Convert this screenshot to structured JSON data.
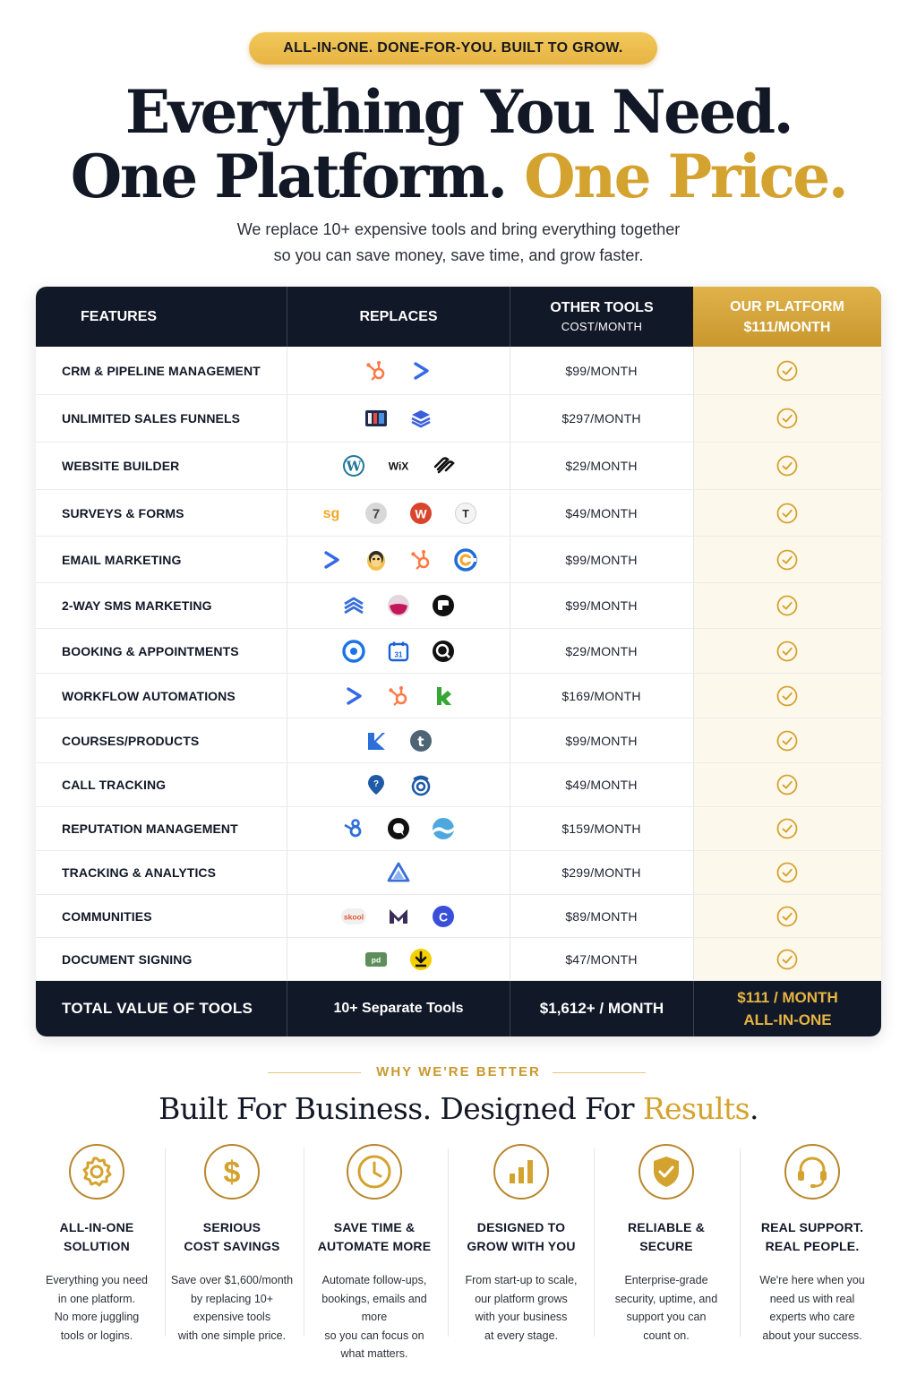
{
  "badge": "ALL-IN-ONE. DONE-FOR-YOU. BUILT TO GROW.",
  "headline": {
    "line1": "Everything You Need.",
    "line2_dark": "One Platform.",
    "line2_gold": "One Price."
  },
  "subheadline": {
    "line1": "We replace 10+ expensive tools and bring everything together",
    "line2": "so you can save money, save time, and grow faster."
  },
  "table": {
    "headers": {
      "features": "FEATURES",
      "replaces": "REPLACES",
      "other_line1": "OTHER TOOLS",
      "other_line2": "COST/MONTH",
      "ours_line1": "OUR PLATFORM",
      "ours_line2": "$111/MONTH"
    },
    "rows": [
      {
        "feature": "CRM & PIPELINE MANAGEMENT",
        "cost": "$99/MONTH",
        "logos": [
          "hubspot-logo",
          "activecampaign-logo"
        ]
      },
      {
        "feature": "UNLIMITED SALES FUNNELS",
        "cost": "$297/MONTH",
        "logos": [
          "clickfunnels-logo",
          "stack-logo"
        ]
      },
      {
        "feature": "WEBSITE BUILDER",
        "cost": "$29/MONTH",
        "logos": [
          "wordpress-logo",
          "wix-logo",
          "squarespace-logo"
        ]
      },
      {
        "feature": "SURVEYS & FORMS",
        "cost": "$49/MONTH",
        "logos": [
          "surveygizmo-logo",
          "seven-logo",
          "wufoo-logo",
          "typeform-logo"
        ]
      },
      {
        "feature": "EMAIL MARKETING",
        "cost": "$99/MONTH",
        "logos": [
          "activecampaign-logo",
          "mailchimp-logo",
          "hubspot-logo",
          "constant-contact-logo"
        ]
      },
      {
        "feature": "2-WAY SMS MARKETING",
        "cost": "$99/MONTH",
        "logos": [
          "layers-logo",
          "sms-bowl-logo",
          "chat-square-logo"
        ]
      },
      {
        "feature": "BOOKING & APPOINTMENTS",
        "cost": "$29/MONTH",
        "logos": [
          "calendly-logo",
          "calendar-logo",
          "search-badge-logo"
        ]
      },
      {
        "feature": "WORKFLOW AUTOMATIONS",
        "cost": "$169/MONTH",
        "logos": [
          "activecampaign-logo",
          "hubspot-logo",
          "keap-logo"
        ]
      },
      {
        "feature": "COURSES/PRODUCTS",
        "cost": "$99/MONTH",
        "logos": [
          "kajabi-logo",
          "teachable-logo"
        ]
      },
      {
        "feature": "CALL TRACKING",
        "cost": "$49/MONTH",
        "logos": [
          "callrail-logo",
          "signal-logo"
        ]
      },
      {
        "feature": "REPUTATION MANAGEMENT",
        "cost": "$159/MONTH",
        "logos": [
          "birdeye-logo",
          "review-chat-logo",
          "podium-wave-logo"
        ]
      },
      {
        "feature": "TRACKING & ANALYTICS",
        "cost": "$299/MONTH",
        "logos": [
          "analytics-triangle-logo"
        ]
      },
      {
        "feature": "COMMUNITIES",
        "cost": "$89/MONTH",
        "logos": [
          "skool-logo",
          "mighty-logo",
          "circle-logo"
        ]
      },
      {
        "feature": "DOCUMENT SIGNING",
        "cost": "$47/MONTH",
        "logos": [
          "pandadoc-logo",
          "docusign-logo"
        ]
      }
    ],
    "footer": {
      "label": "TOTAL VALUE OF TOOLS",
      "tools": "10+ Separate Tools",
      "sum": "$1,612+ / MONTH",
      "ours_line1": "$111 / MONTH",
      "ours_line2": "ALL-IN-ONE"
    }
  },
  "why": {
    "label": "WHY WE'RE BETTER",
    "title_dark": "Built For Business. Designed For ",
    "title_gold": "Results",
    "title_end": ".",
    "features": [
      {
        "icon": "gear-icon",
        "title1": "ALL-IN-ONE",
        "title2": "SOLUTION",
        "desc": [
          "Everything you need",
          "in one platform.",
          "No more juggling",
          "tools or logins."
        ]
      },
      {
        "icon": "dollar-icon",
        "title1": "SERIOUS",
        "title2": "COST SAVINGS",
        "desc": [
          "Save over $1,600/month",
          "by replacing 10+",
          "expensive tools",
          "with one simple price."
        ]
      },
      {
        "icon": "clock-icon",
        "title1": "SAVE TIME &",
        "title2": "AUTOMATE MORE",
        "desc": [
          "Automate follow-ups,",
          "bookings, emails and more",
          "so you can focus on",
          "what matters."
        ]
      },
      {
        "icon": "bar-chart-icon",
        "title1": "DESIGNED TO",
        "title2": "GROW WITH YOU",
        "desc": [
          "From start-up to scale,",
          "our platform grows",
          "with your business",
          "at every stage."
        ]
      },
      {
        "icon": "shield-check-icon",
        "title1": "RELIABLE &",
        "title2": "SECURE",
        "desc": [
          "Enterprise-grade",
          "security, uptime, and",
          "support you can",
          "count on."
        ]
      },
      {
        "icon": "headset-icon",
        "title1": "REAL SUPPORT.",
        "title2": "REAL PEOPLE.",
        "desc": [
          "We're here when you",
          "need us with real",
          "experts who care",
          "about your success."
        ]
      }
    ]
  },
  "colors": {
    "gold": "#d4a32f",
    "navy": "#111827",
    "cream": "#fdf8ec"
  }
}
